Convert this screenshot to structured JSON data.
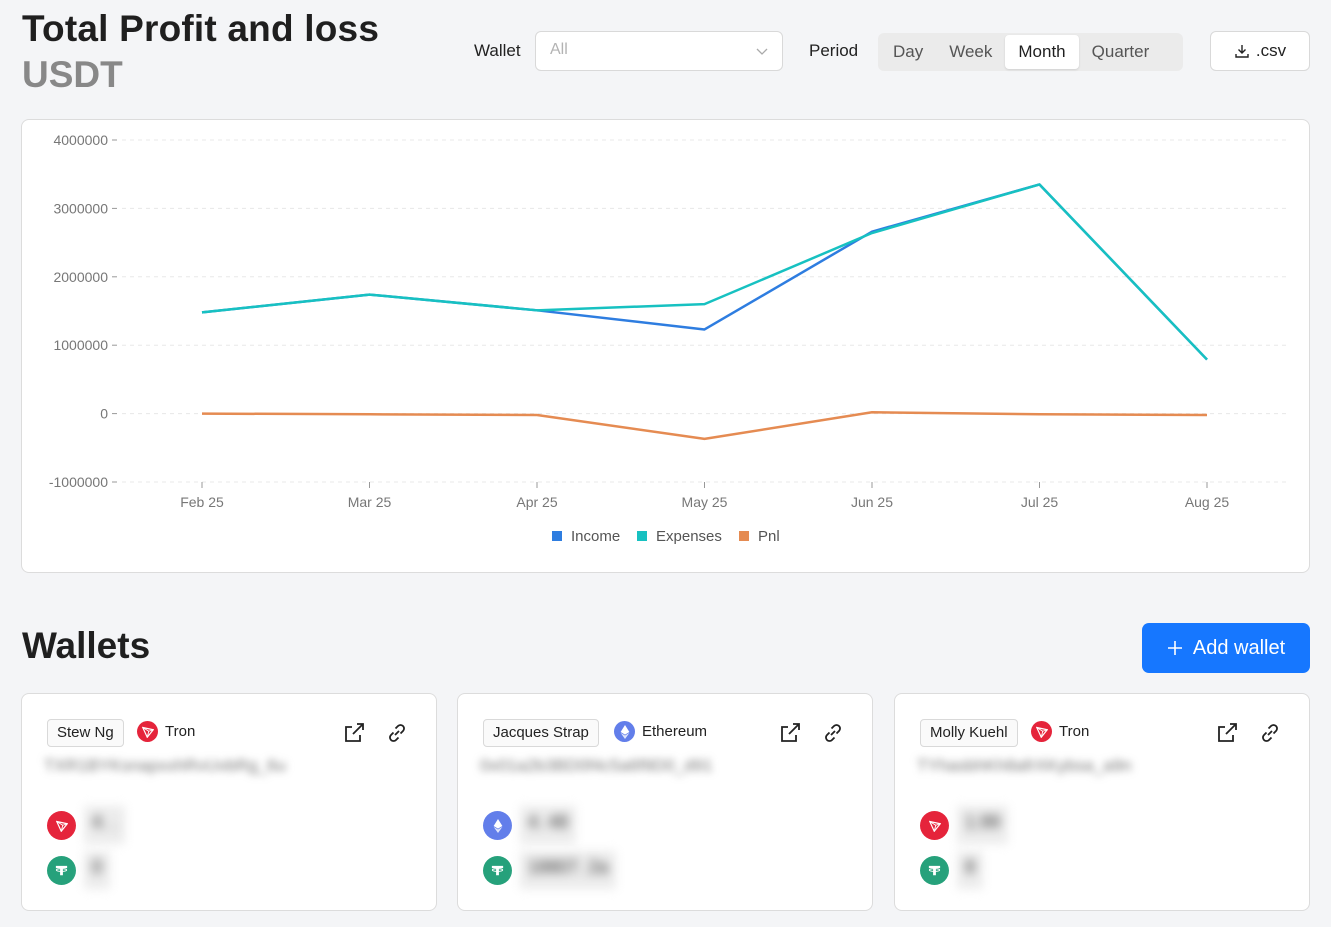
{
  "header": {
    "title": "Total Profit and loss",
    "currency": "USDT",
    "wallet_label": "Wallet",
    "wallet_placeholder": "All",
    "period_label": "Period",
    "periods": [
      "Day",
      "Week",
      "Month",
      "Quarter"
    ],
    "active_period": "Month",
    "csv_label": ".csv"
  },
  "chart_data": {
    "type": "line",
    "title": "",
    "xlabel": "",
    "ylabel": "",
    "categories": [
      "Feb 25",
      "Mar 25",
      "Apr 25",
      "May 25",
      "Jun 25",
      "Jul 25",
      "Aug 25"
    ],
    "yticks": [
      "4000000",
      "3000000",
      "2000000",
      "1000000",
      "0",
      "-1000000"
    ],
    "ylim": [
      -1000000,
      4000000
    ],
    "grid": true,
    "legend_position": "bottom-center",
    "series": [
      {
        "name": "Income",
        "color": "#2e7de0",
        "values": [
          1480000,
          1740000,
          1510000,
          1230000,
          2660000,
          3350000,
          790000
        ]
      },
      {
        "name": "Expenses",
        "color": "#17c1c1",
        "values": [
          1480000,
          1740000,
          1510000,
          1600000,
          2640000,
          3350000,
          790000
        ]
      },
      {
        "name": "Pnl",
        "color": "#e58b52",
        "values": [
          0,
          -10000,
          -20000,
          -370000,
          20000,
          -10000,
          -20000
        ]
      }
    ]
  },
  "wallets": {
    "title": "Wallets",
    "add_label": "Add wallet",
    "cards": [
      {
        "owner": "Stew Ng",
        "chain": "Tron",
        "chain_color": "#e5243b",
        "address": "TXR1BYKsnapxxhRvUvbRg_6u",
        "tokens": [
          {
            "icon": "tron-icon",
            "color": "#e5243b",
            "amount": "4. ."
          },
          {
            "icon": "tether-icon",
            "color": "#26a17b",
            "amount": "0"
          }
        ]
      },
      {
        "owner": "Jacques Strap",
        "chain": "Ethereum",
        "chain_color": "#627eea",
        "address": "0x01a2b3BD0f4c5a6f9D0_d91",
        "tokens": [
          {
            "icon": "ethereum-icon",
            "color": "#627eea",
            "amount": "4. 48"
          },
          {
            "icon": "tether-icon",
            "color": "#26a17b",
            "amount": "18807. 2a"
          }
        ]
      },
      {
        "owner": "Molly Kuehl",
        "chain": "Tron",
        "chain_color": "#e5243b",
        "address": "TYhasbhKh8afrXKybsa_a9n",
        "tokens": [
          {
            "icon": "tron-icon",
            "color": "#e5243b",
            "amount": "1.99"
          },
          {
            "icon": "tether-icon",
            "color": "#26a17b",
            "amount": "8"
          }
        ]
      }
    ]
  }
}
